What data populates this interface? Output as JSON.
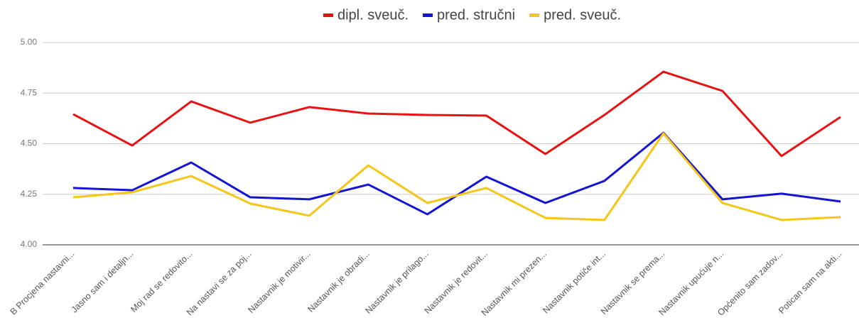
{
  "chart_data": {
    "type": "line",
    "categories": [
      "B Procjena nastavni...",
      "Jasno sam i detaljn...",
      "Moj rad se redovito...",
      "Na nastavi se za poj...",
      "Nastavnik je motivir...",
      "Nastavnik je obradi...",
      "Nastavnik je prilago...",
      "Nastavnik je redovit...",
      "Nastavnik mi prezen...",
      "Nastavnik potiče int...",
      "Nastavnik se prema...",
      "Nastavnik upućuje n...",
      "Općenito sam zadov...",
      "Potican sam na akti..."
    ],
    "series": [
      {
        "name": "dipl. sveuč.",
        "color": "#e81212",
        "values": [
          4.646,
          4.491,
          4.709,
          4.604,
          4.681,
          4.649,
          4.642,
          4.639,
          4.449,
          4.642,
          4.856,
          4.761,
          4.439,
          4.632
        ]
      },
      {
        "name": "pred. stručni",
        "color": "#1414d4",
        "values": [
          4.281,
          4.27,
          4.407,
          4.235,
          4.225,
          4.298,
          4.151,
          4.337,
          4.207,
          4.316,
          4.554,
          4.225,
          4.253,
          4.214
        ]
      },
      {
        "name": "pred. sveuč.",
        "color": "#f5c518",
        "values": [
          4.235,
          4.26,
          4.34,
          4.204,
          4.144,
          4.393,
          4.207,
          4.281,
          4.133,
          4.123,
          4.551,
          4.207,
          4.123,
          4.137
        ]
      }
    ],
    "ylim": [
      4,
      5
    ],
    "yticks": [
      {
        "value": 4,
        "label": "4.00"
      },
      {
        "value": 4.25,
        "label": "4.25"
      },
      {
        "value": 4.5,
        "label": "4.50"
      },
      {
        "value": 4.75,
        "label": "4.75"
      },
      {
        "value": 5,
        "label": "5.00"
      }
    ],
    "grid": true,
    "legend": "top"
  }
}
